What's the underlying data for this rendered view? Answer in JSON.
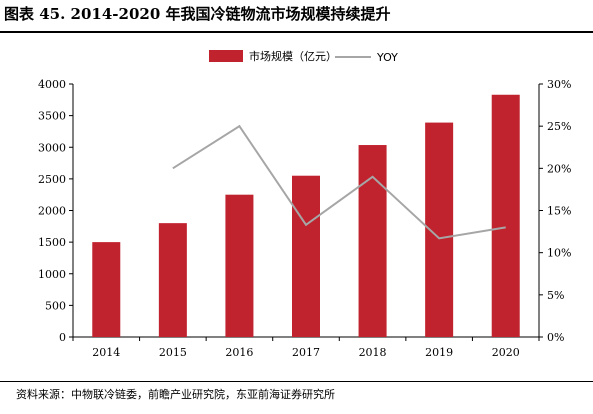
{
  "title": "图表 45. 2014-2020 年我国冷链物流市场规模持续提升",
  "source": "资料来源：中物联冷链委，前瞻产业研究院，东亚前海证券研究所",
  "colors": {
    "bar": "#c0222e",
    "line": "#a6a6a6",
    "axis": "#000000"
  },
  "chart_data": {
    "type": "bar",
    "categories": [
      "2014",
      "2015",
      "2016",
      "2017",
      "2018",
      "2019",
      "2020"
    ],
    "series": [
      {
        "name": "市场规模（亿元）",
        "type": "bar",
        "axis": "left",
        "values": [
          1500,
          1800,
          2250,
          2550,
          3035,
          3390,
          3830
        ]
      },
      {
        "name": "YOY",
        "type": "line",
        "axis": "right",
        "values": [
          null,
          20.0,
          25.0,
          13.3,
          19.0,
          11.7,
          13.0
        ]
      }
    ],
    "ylim_left": [
      0,
      4000
    ],
    "yticks_left": [
      "0",
      "500",
      "1000",
      "1500",
      "2000",
      "2500",
      "3000",
      "3500",
      "4000"
    ],
    "ylim_right": [
      0,
      30
    ],
    "yticks_right": [
      "0%",
      "5%",
      "10%",
      "15%",
      "20%",
      "25%",
      "30%"
    ],
    "legend": "top-center",
    "grid": false
  }
}
